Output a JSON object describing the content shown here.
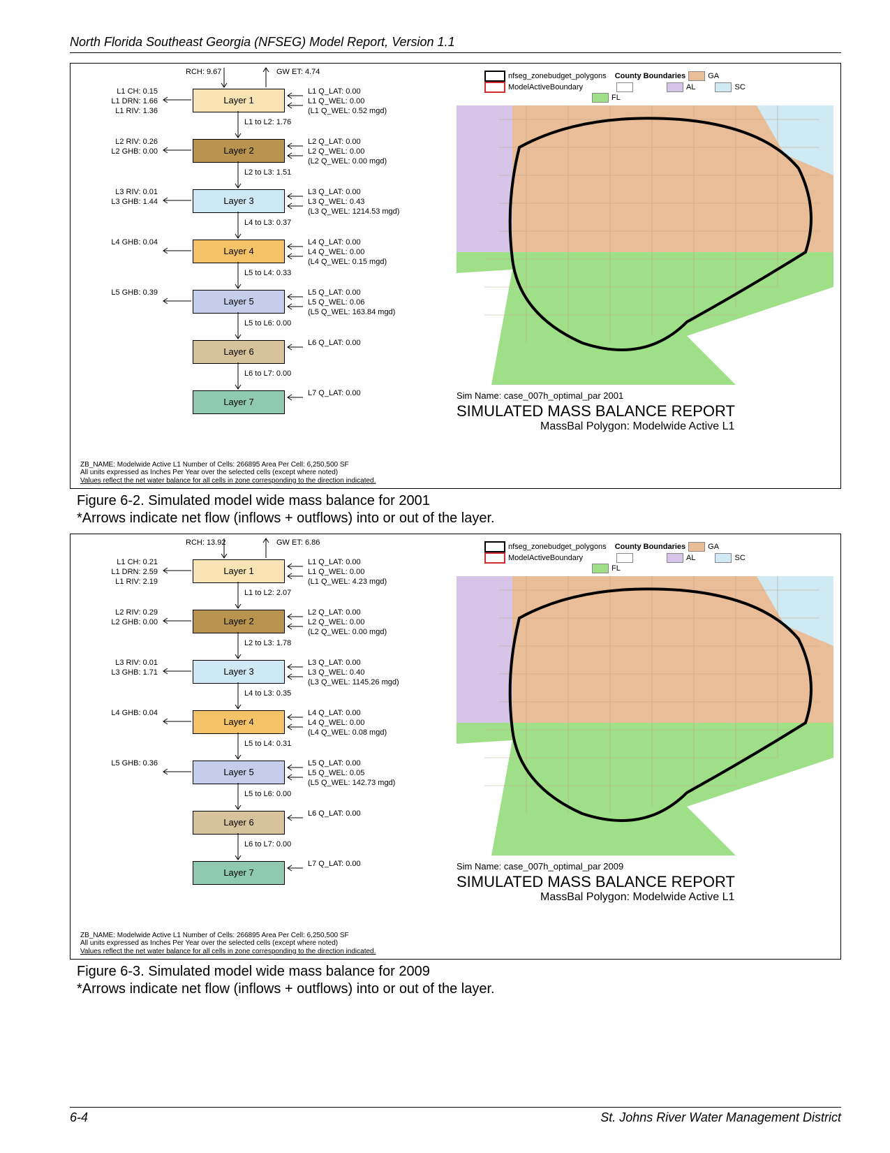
{
  "header": "North Florida Southeast Georgia (NFSEG) Model Report, Version 1.1",
  "footer": {
    "left": "6-4",
    "right": "St. Johns River Water Management District"
  },
  "palette": {
    "layer1": "#f7e3b4",
    "layer2": "#b8944e",
    "layer3": "#cfe8f5",
    "layer4": "#f4c368",
    "layer5": "#c4cdec",
    "layer6": "#d6c29b",
    "layer7": "#8ec9b0",
    "ga": "#e8bd98",
    "al": "#d6c5e8",
    "fl": "#9fdf87",
    "sc": "#cfeaf2",
    "boundary": "#000000",
    "active": "#d12b2b"
  },
  "legend": {
    "poly": "nfseg_zonebudget_polygons",
    "active": "ModelActiveBoundary",
    "cb": "County Boundaries",
    "ga": "GA",
    "al": "AL",
    "fl": "FL",
    "sc": "SC"
  },
  "report": {
    "title": "SIMULATED MASS BALANCE REPORT",
    "sub": "MassBal Polygon: Modelwide Active L1"
  },
  "zb": "ZB_NAME: Modelwide Active L1   Number of Cells: 266895   Area Per Cell: 6,250,500 SF",
  "zb2": "All units expressed as Inches Per Year over the selected cells (except where noted)",
  "zb3": "Values reflect the net water balance for all cells in zone corresponding to the direction indicated.",
  "figures": [
    {
      "caption": "Figure 6-2.      Simulated model wide mass balance for 2001",
      "sub": "*Arrows indicate net flow (inflows + outflows) into or out of the layer.",
      "sim": "Sim Name: case_007h_optimal_par     2001",
      "top": {
        "rch": "RCH:  9.67",
        "gwet": "GW ET:  4.74"
      },
      "layers": [
        {
          "name": "Layer 1",
          "left": [
            "L1 CH:  0.15",
            "L1 DRN:  1.66",
            "L1 RIV:  1.36"
          ],
          "right": [
            "L1 Q_LAT:  0.00",
            "L1 Q_WEL:  0.00",
            "(L1 Q_WEL:  0.52 mgd)"
          ],
          "down": "L1 to L2:  1.76",
          "color": "layer1"
        },
        {
          "name": "Layer 2",
          "left": [
            "L2 RIV:  0.26",
            "L2 GHB:  0.00"
          ],
          "right": [
            "L2 Q_LAT:  0.00",
            "L2 Q_WEL:  0.00",
            "(L2 Q_WEL:  0.00 mgd)"
          ],
          "down": "L2 to L3:  1.51",
          "color": "layer2"
        },
        {
          "name": "Layer 3",
          "left": [
            "L3 RIV:  0.01",
            "L3 GHB:  1.44"
          ],
          "right": [
            "L3 Q_LAT:  0.00",
            "L3 Q_WEL:  0.43",
            "(L3 Q_WEL:  1214.53 mgd)"
          ],
          "down": "L4 to L3:  0.37",
          "color": "layer3"
        },
        {
          "name": "Layer 4",
          "left": [
            "L4 GHB:  0.04"
          ],
          "right": [
            "L4 Q_LAT:  0.00",
            "L4 Q_WEL:  0.00",
            "(L4 Q_WEL:  0.15 mgd)"
          ],
          "down": "L5 to L4:  0.33",
          "color": "layer4"
        },
        {
          "name": "Layer 5",
          "left": [
            "L5 GHB:  0.39"
          ],
          "right": [
            "L5 Q_LAT:  0.00",
            "L5 Q_WEL:  0.06",
            "(L5 Q_WEL:  163.84 mgd)"
          ],
          "down": "L5 to L6:  0.00",
          "color": "layer5"
        },
        {
          "name": "Layer 6",
          "left": [],
          "right": [
            "L6 Q_LAT:  0.00"
          ],
          "down": "L6 to L7:  0.00",
          "color": "layer6"
        },
        {
          "name": "Layer 7",
          "left": [],
          "right": [
            "L7 Q_LAT:  0.00"
          ],
          "down": null,
          "color": "layer7"
        }
      ]
    },
    {
      "caption": "Figure 6-3.      Simulated model wide mass balance for 2009",
      "sub": "*Arrows indicate net flow (inflows + outflows) into or out of the layer.",
      "sim": "Sim Name: case_007h_optimal_par     2009",
      "top": {
        "rch": "RCH: 13.92",
        "gwet": "GW ET:  6.86"
      },
      "layers": [
        {
          "name": "Layer 1",
          "left": [
            "L1 CH:  0.21",
            "L1 DRN:  2.59",
            "L1 RIV:  2.19"
          ],
          "right": [
            "L1 Q_LAT:  0.00",
            "L1 Q_WEL:  0.00",
            "(L1 Q_WEL:  4.23 mgd)"
          ],
          "down": "L1 to L2:  2.07",
          "color": "layer1"
        },
        {
          "name": "Layer 2",
          "left": [
            "L2 RIV:  0.29",
            "L2 GHB:  0.00"
          ],
          "right": [
            "L2 Q_LAT:  0.00",
            "L2 Q_WEL:  0.00",
            "(L2 Q_WEL:  0.00 mgd)"
          ],
          "down": "L2 to L3:  1.78",
          "color": "layer2"
        },
        {
          "name": "Layer 3",
          "left": [
            "L3 RIV:  0.01",
            "L3 GHB:  1.71"
          ],
          "right": [
            "L3 Q_LAT:  0.00",
            "L3 Q_WEL:  0.40",
            "(L3 Q_WEL:  1145.26 mgd)"
          ],
          "down": "L4 to L3:  0.35",
          "color": "layer3"
        },
        {
          "name": "Layer 4",
          "left": [
            "L4 GHB:  0.04"
          ],
          "right": [
            "L4 Q_LAT:  0.00",
            "L4 Q_WEL:  0.00",
            "(L4 Q_WEL:  0.08 mgd)"
          ],
          "down": "L5 to L4:  0.31",
          "color": "layer4"
        },
        {
          "name": "Layer 5",
          "left": [
            "L5 GHB:  0.36"
          ],
          "right": [
            "L5 Q_LAT:  0.00",
            "L5 Q_WEL:  0.05",
            "(L5 Q_WEL:  142.73 mgd)"
          ],
          "down": "L5 to L6:  0.00",
          "color": "layer5"
        },
        {
          "name": "Layer 6",
          "left": [],
          "right": [
            "L6 Q_LAT:  0.00"
          ],
          "down": "L6 to L7:  0.00",
          "color": "layer6"
        },
        {
          "name": "Layer 7",
          "left": [],
          "right": [
            "L7 Q_LAT:  0.00"
          ],
          "down": null,
          "color": "layer7"
        }
      ]
    }
  ]
}
